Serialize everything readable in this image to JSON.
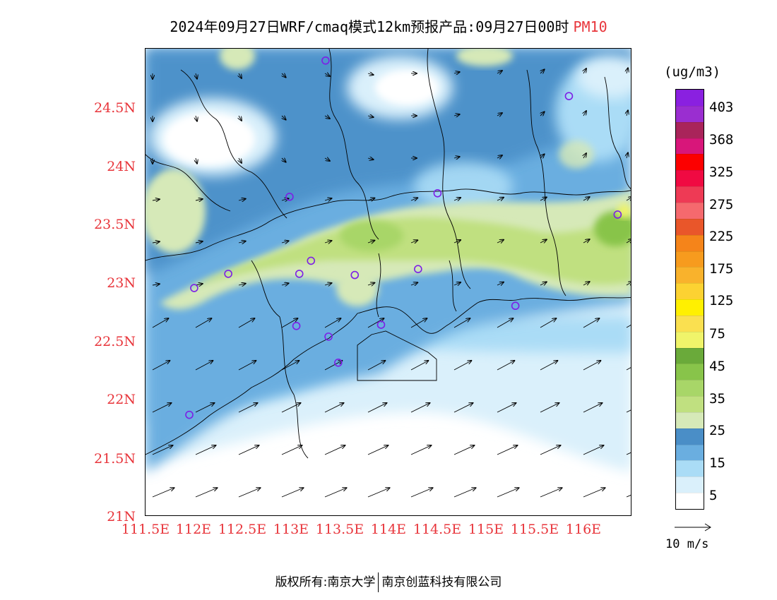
{
  "title": {
    "text": "2024年09月27日WRF/cmaq模式12km预报产品:09月27日00时",
    "variable": "PM10"
  },
  "map": {
    "lon_range": [
      111.5,
      116.5
    ],
    "lat_range": [
      21.0,
      24.95
    ],
    "lat_ticks": [
      "24.5N",
      "24N",
      "23.5N",
      "23N",
      "22.5N",
      "22N",
      "21.5N",
      "21N"
    ],
    "lon_ticks": [
      "111.5E",
      "112E",
      "112.5E",
      "113E",
      "113.5E",
      "114E",
      "114.5E",
      "115E",
      "115.5E",
      "116E"
    ],
    "station_color": "#7d1fe6",
    "stations": [
      {
        "lon": 113.35,
        "lat": 24.85
      },
      {
        "lon": 115.85,
        "lat": 24.55
      },
      {
        "lon": 112.98,
        "lat": 23.7
      },
      {
        "lon": 114.5,
        "lat": 23.73
      },
      {
        "lon": 116.35,
        "lat": 23.55
      },
      {
        "lon": 112.0,
        "lat": 22.93
      },
      {
        "lon": 112.35,
        "lat": 23.05
      },
      {
        "lon": 113.08,
        "lat": 23.05
      },
      {
        "lon": 113.2,
        "lat": 23.16
      },
      {
        "lon": 113.65,
        "lat": 23.04
      },
      {
        "lon": 114.3,
        "lat": 23.09
      },
      {
        "lon": 115.3,
        "lat": 22.78
      },
      {
        "lon": 113.05,
        "lat": 22.61
      },
      {
        "lon": 113.38,
        "lat": 22.52
      },
      {
        "lon": 113.92,
        "lat": 22.62
      },
      {
        "lon": 113.48,
        "lat": 22.3
      },
      {
        "lon": 111.95,
        "lat": 21.86
      }
    ]
  },
  "colorbar": {
    "unit": "(ug/m3)",
    "labels": [
      "5",
      "15",
      "25",
      "35",
      "45",
      "75",
      "125",
      "175",
      "225",
      "275",
      "325",
      "368",
      "403"
    ],
    "colors": [
      "#ffffff",
      "#daf0fb",
      "#aadcf6",
      "#6aaee0",
      "#4a8ec7",
      "#d6e9b8",
      "#c0e080",
      "#a8d668",
      "#88c44a",
      "#6aaa3a",
      "#f0f46a",
      "#fae050",
      "#fff000",
      "#fcd232",
      "#f9b22c",
      "#f79b1e",
      "#f5841a",
      "#e9562a",
      "#f5696e",
      "#ee3a55",
      "#f00a42",
      "#fc0000",
      "#d8167a",
      "#a9245a",
      "#9a2ed0",
      "#8a20e0"
    ]
  },
  "vector_ref": {
    "label": "10 m/s"
  },
  "footer": {
    "left": "版权所有:南京大学",
    "right": "南京创蓝科技有限公司"
  }
}
